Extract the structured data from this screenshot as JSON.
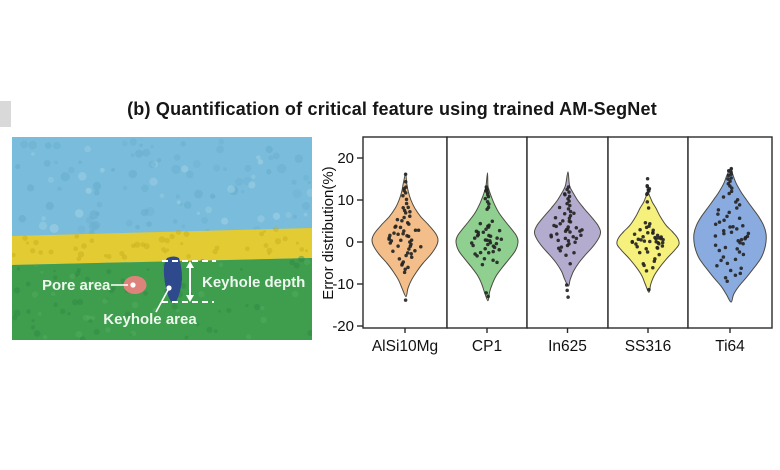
{
  "figure": {
    "title": "(b) Quantification of critical feature using trained AM-SegNet"
  },
  "micrograph": {
    "labels": {
      "pore": "Pore area",
      "keyhole_area": "Keyhole area",
      "keyhole_depth": "Keyhole depth"
    },
    "colors": {
      "powder_bed": "#7ABCDB",
      "powder_layer": "#E2CB33",
      "substrate": "#3F9D4E",
      "pore": "#DE837B",
      "keyhole": "#2E4A8C",
      "annotation": "#EDF7EE"
    }
  },
  "chart_data": {
    "type": "violin",
    "title": "",
    "xlabel": "",
    "ylabel": "Error distribution(%)",
    "ylim": [
      -20.5,
      25
    ],
    "yticks": [
      20,
      10,
      0,
      -10,
      -20
    ],
    "grid": false,
    "legend": "none",
    "axis_color": "#2b2b2b",
    "point_color": "#242424",
    "violin_stroke": "#4c4a42",
    "categories": [
      "AlSi10Mg",
      "CP1",
      "In625",
      "SS316",
      "Ti64"
    ],
    "series": [
      {
        "name": "AlSi10Mg",
        "fill": "#F3BE8A",
        "violin_range": [
          -13,
          16.3
        ],
        "profile": [
          [
            -13,
            0.03
          ],
          [
            -11,
            0.09
          ],
          [
            -9,
            0.2
          ],
          [
            -7,
            0.36
          ],
          [
            -5,
            0.55
          ],
          [
            -3,
            0.78
          ],
          [
            -1,
            0.95
          ],
          [
            0.5,
            1.0
          ],
          [
            2,
            0.93
          ],
          [
            4,
            0.72
          ],
          [
            6,
            0.48
          ],
          [
            8,
            0.3
          ],
          [
            10,
            0.18
          ],
          [
            12,
            0.1
          ],
          [
            14,
            0.05
          ],
          [
            16.3,
            0.02
          ]
        ],
        "max_halfwidth": 33,
        "points": [
          16,
          14.3,
          13,
          12.6,
          12.2,
          11.8,
          11,
          10.2,
          9,
          8.4,
          8,
          7.6,
          7.2,
          6.8,
          6.3,
          5.8,
          5.4,
          5,
          4.6,
          4.2,
          3.9,
          3.6,
          3.3,
          3,
          2.8,
          2.5,
          2.3,
          2,
          1.8,
          1.6,
          1.4,
          1.2,
          1,
          0.8,
          0.6,
          0.4,
          0.2,
          0,
          -0.2,
          -0.5,
          -0.8,
          -1,
          -1.3,
          -1.6,
          -2,
          -2.3,
          -2.7,
          -3,
          -3.4,
          -3.8,
          -4.2,
          -4.6,
          -5,
          -5.5,
          -6,
          -6.6,
          -7.2,
          -13.8
        ]
      },
      {
        "name": "CP1",
        "fill": "#8FD091",
        "violin_range": [
          -14,
          16.5
        ],
        "profile": [
          [
            -14,
            0.03
          ],
          [
            -12,
            0.08
          ],
          [
            -10,
            0.17
          ],
          [
            -8,
            0.3
          ],
          [
            -6,
            0.5
          ],
          [
            -4,
            0.72
          ],
          [
            -2,
            0.92
          ],
          [
            0,
            1.0
          ],
          [
            1.5,
            0.95
          ],
          [
            3,
            0.8
          ],
          [
            5,
            0.58
          ],
          [
            7,
            0.38
          ],
          [
            9,
            0.24
          ],
          [
            11,
            0.13
          ],
          [
            12.5,
            0.06
          ],
          [
            13.5,
            0.03
          ],
          [
            16.5,
            0.015
          ]
        ],
        "max_halfwidth": 31,
        "points": [
          13,
          12.6,
          12.3,
          12,
          11.7,
          11.3,
          10.8,
          10.2,
          9.6,
          9,
          8.4,
          7.8,
          4.8,
          4.4,
          4,
          3.7,
          3.4,
          3.1,
          2.8,
          2.5,
          2.3,
          2.1,
          1.9,
          1.7,
          1.5,
          1.3,
          1.1,
          0.9,
          0.7,
          0.5,
          0.3,
          0.1,
          -0.1,
          -0.3,
          -0.5,
          -0.7,
          -0.9,
          -1.1,
          -1.3,
          -1.5,
          -1.8,
          -2.1,
          -2.4,
          -2.7,
          -3,
          -3.4,
          -3.8,
          -4.2,
          -4.7,
          -5.2,
          -12,
          -13
        ]
      },
      {
        "name": "In625",
        "fill": "#B4ACCF",
        "violin_range": [
          -10.5,
          16.7
        ],
        "profile": [
          [
            -10.5,
            0.03
          ],
          [
            -9,
            0.08
          ],
          [
            -7,
            0.18
          ],
          [
            -5,
            0.34
          ],
          [
            -3,
            0.55
          ],
          [
            -1,
            0.78
          ],
          [
            1,
            0.95
          ],
          [
            2.5,
            1.0
          ],
          [
            4,
            0.92
          ],
          [
            6,
            0.72
          ],
          [
            8,
            0.5
          ],
          [
            10,
            0.3
          ],
          [
            12,
            0.15
          ],
          [
            13.5,
            0.06
          ],
          [
            16.7,
            0.015
          ]
        ],
        "max_halfwidth": 33,
        "points": [
          13,
          12.5,
          12,
          11.6,
          11.2,
          10.8,
          10.3,
          9.8,
          9.3,
          8.8,
          8.3,
          7.8,
          7.4,
          7,
          6.6,
          6.2,
          5.8,
          5.5,
          5.2,
          4.9,
          4.6,
          4.3,
          4,
          3.8,
          3.6,
          3.4,
          3.2,
          3,
          2.8,
          2.6,
          2.4,
          2.2,
          2,
          1.8,
          1.6,
          1.4,
          1.2,
          1,
          0.8,
          0.5,
          0.2,
          -0.1,
          -0.4,
          -0.8,
          -1.2,
          -1.6,
          -2,
          -2.5,
          -3,
          -5,
          -10.2,
          -11.4,
          -13
        ]
      },
      {
        "name": "SS316",
        "fill": "#F6F07C",
        "violin_range": [
          -12,
          11.5
        ],
        "profile": [
          [
            -12,
            0.03
          ],
          [
            -10,
            0.09
          ],
          [
            -8,
            0.2
          ],
          [
            -6,
            0.38
          ],
          [
            -4,
            0.6
          ],
          [
            -2,
            0.85
          ],
          [
            -0.5,
            1.0
          ],
          [
            1,
            0.95
          ],
          [
            2.5,
            0.78
          ],
          [
            4,
            0.58
          ],
          [
            6,
            0.4
          ],
          [
            8,
            0.26
          ],
          [
            9.5,
            0.14
          ],
          [
            11,
            0.05
          ],
          [
            11.5,
            0.02
          ]
        ],
        "max_halfwidth": 31,
        "points": [
          15,
          13.6,
          13.2,
          12.8,
          12.4,
          12,
          11.6,
          11.2,
          9.5,
          8,
          4.6,
          4.2,
          3.8,
          3.4,
          3,
          2.7,
          2.4,
          2.2,
          2,
          1.8,
          1.6,
          1.4,
          1.2,
          1.1,
          1,
          0.9,
          0.8,
          0.7,
          0.6,
          0.5,
          0.4,
          0.3,
          0.2,
          0.1,
          0,
          -0.1,
          -0.2,
          -0.4,
          -0.6,
          -0.8,
          -1,
          -1.2,
          -1.5,
          -1.8,
          -2.2,
          -2.6,
          -3,
          -4,
          -4.5,
          -5,
          -5.6,
          -6.2,
          -6.8,
          -11.4
        ]
      },
      {
        "name": "Ti64",
        "fill": "#8AABDF",
        "violin_range": [
          -14.3,
          17.6
        ],
        "profile": [
          [
            -14.3,
            0.03
          ],
          [
            -12.5,
            0.1
          ],
          [
            -10.5,
            0.25
          ],
          [
            -8.5,
            0.45
          ],
          [
            -6,
            0.68
          ],
          [
            -4,
            0.85
          ],
          [
            -2,
            0.95
          ],
          [
            0,
            1.0
          ],
          [
            2,
            1.0
          ],
          [
            4,
            0.93
          ],
          [
            6,
            0.8
          ],
          [
            8,
            0.63
          ],
          [
            10,
            0.46
          ],
          [
            12,
            0.3
          ],
          [
            14,
            0.17
          ],
          [
            16,
            0.08
          ],
          [
            17.6,
            0.025
          ]
        ],
        "max_halfwidth": 36,
        "points": [
          17.4,
          17,
          16.6,
          16.2,
          15.8,
          15.4,
          15,
          14.5,
          14,
          13.4,
          12.8,
          12.2,
          11.5,
          10.8,
          10,
          9.4,
          8.8,
          8.2,
          7.6,
          7,
          6.5,
          6,
          5.6,
          5.2,
          4.8,
          4.4,
          4,
          3.7,
          3.4,
          3.1,
          2.8,
          2.5,
          2.2,
          1.9,
          1.6,
          1.3,
          1,
          0.7,
          0.4,
          0.1,
          -0.2,
          -0.5,
          -0.9,
          -1.3,
          -1.7,
          -2.1,
          -2.5,
          -3,
          -3.5,
          -4,
          -4.5,
          -5,
          -5.6,
          -6.2,
          -6.8,
          -7.4,
          -8,
          -8.7,
          -9.3
        ]
      }
    ]
  }
}
